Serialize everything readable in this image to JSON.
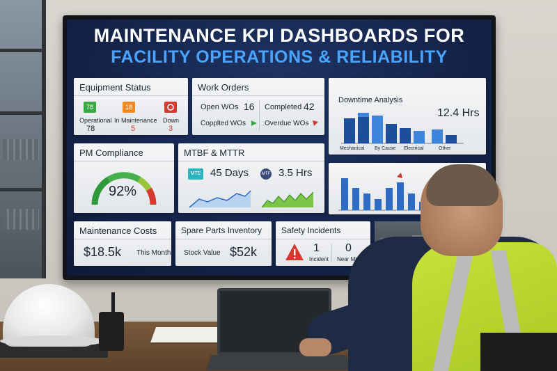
{
  "dashboard": {
    "title_line1": "MAINTENANCE KPI DASHBOARDS FOR",
    "title_line2": "FACILITY OPERATIONS & RELIABILITY"
  },
  "equipment_status": {
    "title": "Equipment Status",
    "items": [
      {
        "badge": "78",
        "label": "Operational",
        "value": "78",
        "color": "#3aa845"
      },
      {
        "badge": "18",
        "label": "In Maintenance",
        "value": "5",
        "color": "#f08a24"
      },
      {
        "badge": "",
        "label": "Down",
        "value": "3",
        "color": "#d4382e"
      }
    ]
  },
  "work_orders": {
    "title": "Work Orders",
    "open_label": "Open WOs",
    "open_value": "16",
    "completed_label": "Completed",
    "completed_value": "42",
    "coppl_label": "Copplted WOs",
    "overdue_label": "Overdue WOs"
  },
  "downtime": {
    "title": "Downtime Analysis",
    "value": "12.4 Hrs",
    "categories": [
      "Mechanical",
      "By Cause",
      "Electrical",
      "Other"
    ]
  },
  "pm_compliance": {
    "title": "PM Compliance",
    "value": "92%",
    "percent": 92
  },
  "mtbf_mttr": {
    "title": "MTBF & MTTR",
    "mtbf_badge": "MTE",
    "mtbf_value": "45 Days",
    "mttr_badge": "MTF",
    "mttr_value": "3.5 Hrs"
  },
  "maintenance_costs": {
    "title": "Maintenance Costs",
    "value": "$18.5k",
    "period": "This Month"
  },
  "spare_parts": {
    "title": "Spare Parts Inventory",
    "label": "Stock Value",
    "value": "$52k"
  },
  "safety": {
    "title": "Safety Incidents",
    "incident_value": "1",
    "incident_label": "Incident",
    "near_miss_value": "0",
    "near_miss_label": "Near Misses"
  }
}
